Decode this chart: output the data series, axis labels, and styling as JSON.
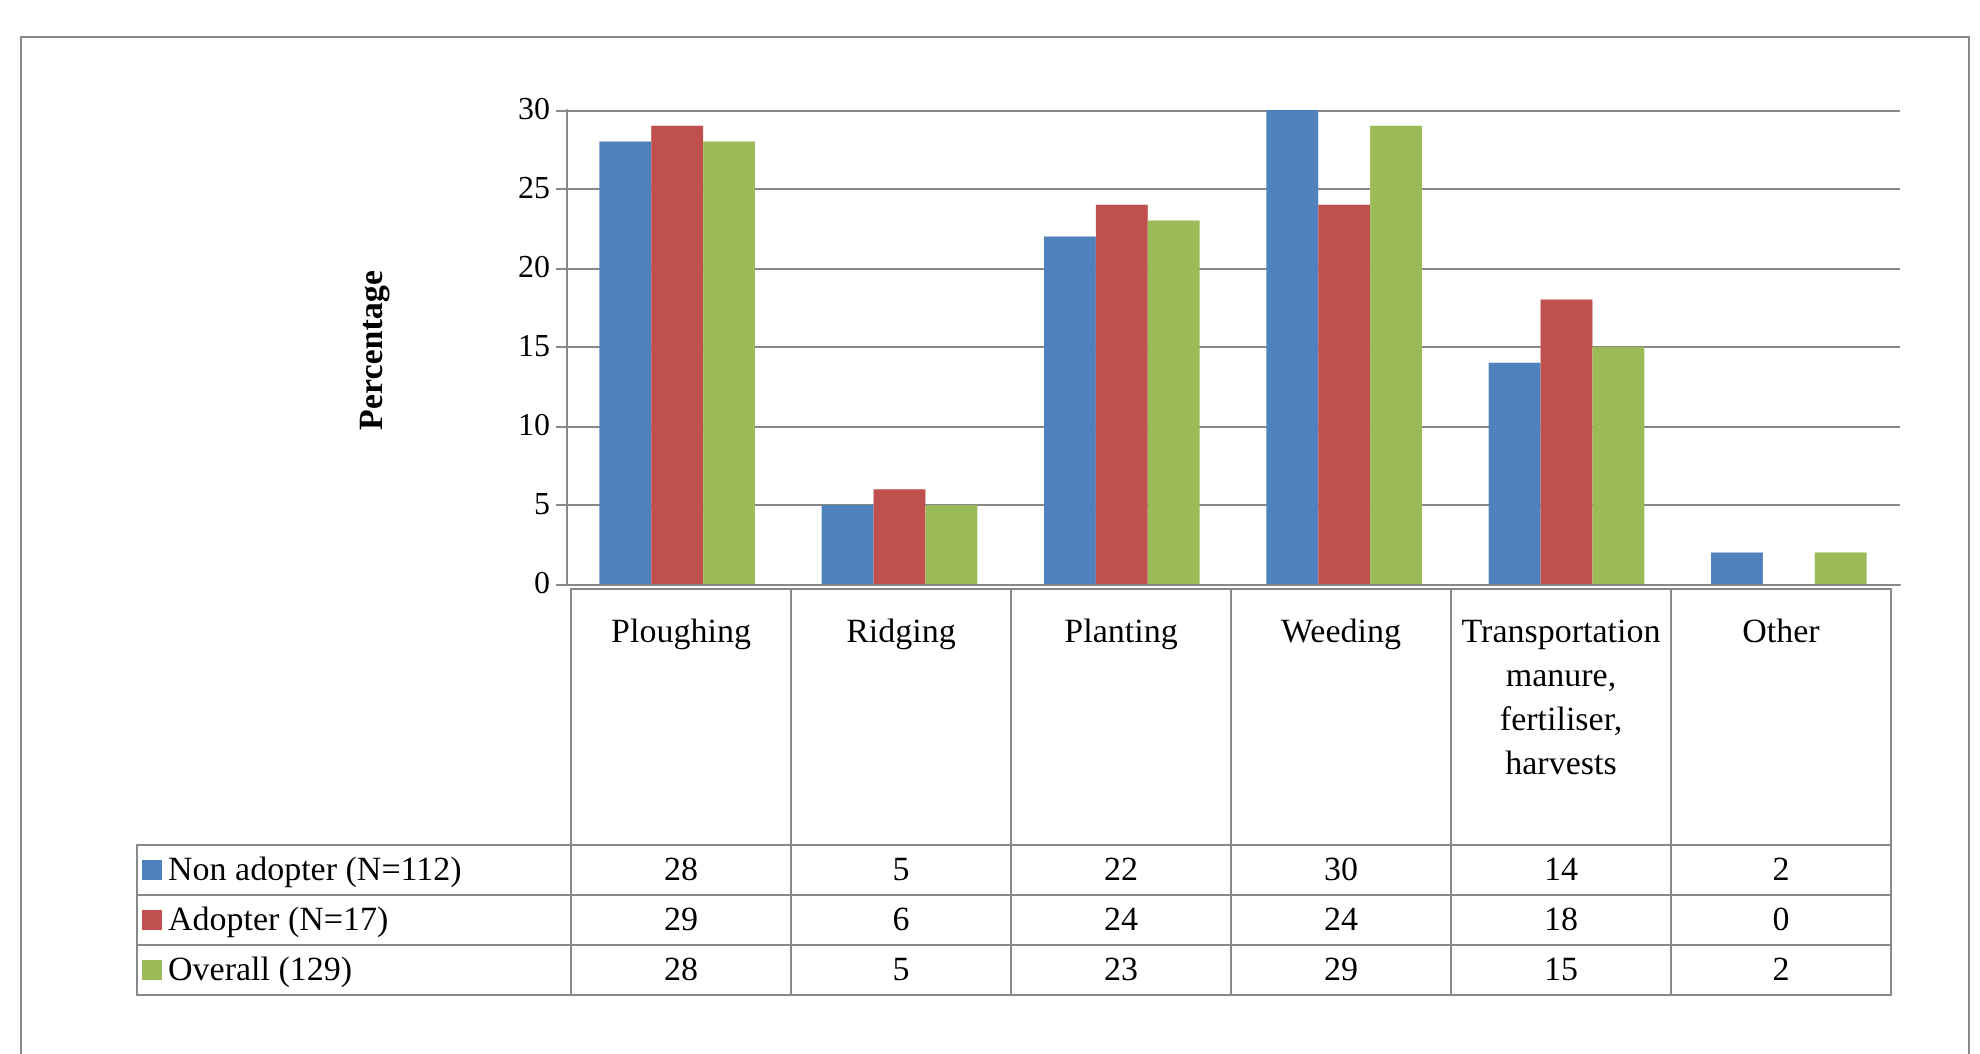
{
  "chart_data": {
    "type": "bar",
    "ylabel": "Percentage",
    "categories": [
      "Ploughing",
      "Ridging",
      "Planting",
      "Weeding",
      "Transportation manure, fertiliser, harvests",
      "Other"
    ],
    "series": [
      {
        "name": "Non adopter (N=112)",
        "color": "#4f81bd",
        "values": [
          28,
          5,
          22,
          30,
          14,
          2
        ]
      },
      {
        "name": "Adopter (N=17)",
        "color": "#c0504d",
        "values": [
          29,
          6,
          24,
          24,
          18,
          0
        ]
      },
      {
        "name": "Overall (129)",
        "color": "#9bbb59",
        "values": [
          28,
          5,
          23,
          29,
          15,
          2
        ]
      }
    ],
    "ylim": [
      0,
      30
    ],
    "yticks": [
      0,
      5,
      10,
      15,
      20,
      25,
      30
    ],
    "grid": "y",
    "data_labels": true,
    "legend": "bottom"
  }
}
